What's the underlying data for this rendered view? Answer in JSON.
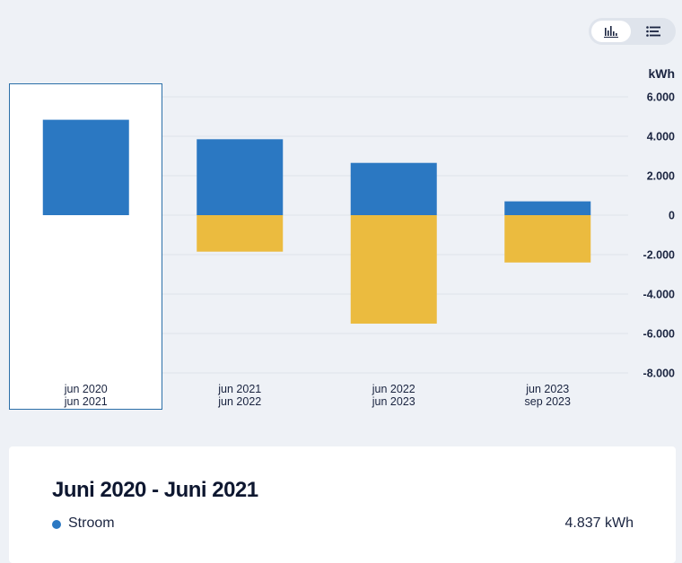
{
  "toggle": {
    "options": [
      {
        "icon": "bar-chart-icon",
        "active": true
      },
      {
        "icon": "list-icon",
        "active": false
      }
    ]
  },
  "chart_data": {
    "type": "bar",
    "stacked": true,
    "ylabel": "kWh",
    "ylim": [
      -8000,
      6000
    ],
    "yticks": [
      {
        "value": 6000,
        "label": "6.000"
      },
      {
        "value": 4000,
        "label": "4.000"
      },
      {
        "value": 2000,
        "label": "2.000"
      },
      {
        "value": 0,
        "label": "0"
      },
      {
        "value": -2000,
        "label": "-2.000"
      },
      {
        "value": -4000,
        "label": "-4.000"
      },
      {
        "value": -6000,
        "label": "-6.000"
      },
      {
        "value": -8000,
        "label": "-8.000"
      }
    ],
    "categories": [
      {
        "line1": "jun 2020",
        "line2": "jun 2021"
      },
      {
        "line1": "jun 2021",
        "line2": "jun 2022"
      },
      {
        "line1": "jun 2022",
        "line2": "jun 2023"
      },
      {
        "line1": "jun 2023",
        "line2": "sep 2023"
      }
    ],
    "selected_index": 0,
    "grid": true,
    "series": [
      {
        "color": "#2b78c2",
        "values": [
          4837,
          3850,
          2650,
          700
        ]
      },
      {
        "color": "#ebbb3f",
        "values": [
          0,
          -1850,
          -5500,
          -2400
        ]
      }
    ]
  },
  "panel": {
    "title": "Juni 2020 - Juni 2021",
    "legend": [
      {
        "name": "Stroom",
        "value": "4.837 kWh",
        "color": "#2b78c2"
      }
    ]
  }
}
